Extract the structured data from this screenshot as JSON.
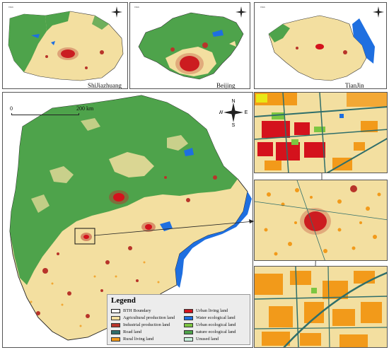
{
  "colors": {
    "agricultural": "#f3dfa0",
    "industrial": "#b8342a",
    "road": "#2f6e6a",
    "rural": "#f29a1a",
    "urban": "#d4121c",
    "water": "#1e6fe0",
    "urban_ecological": "#7cc641",
    "nature_ecological": "#4ea34b",
    "unused": "#c8f0dc",
    "boundary": "#222222"
  },
  "top_maps": [
    {
      "label": "ShiJiazhuang",
      "scale": "0 Km"
    },
    {
      "label": "Beijing",
      "scale": "0 Km"
    },
    {
      "label": "TianJin",
      "scale": "0 Km"
    }
  ],
  "main_map": {
    "scale_start": "0",
    "scale_end": "200 km",
    "compass": {
      "n": "N",
      "s": "S",
      "e": "E",
      "w": "W"
    }
  },
  "legend": {
    "title": "Legend",
    "items": [
      {
        "label": "BTH Boundary",
        "color_key": "boundary_box"
      },
      {
        "label": "Agricultural production land",
        "color_key": "agricultural"
      },
      {
        "label": "Industrial production land",
        "color_key": "industrial"
      },
      {
        "label": "Road land",
        "color_key": "road"
      },
      {
        "label": "Rural living land",
        "color_key": "rural"
      },
      {
        "label": "Urban living land",
        "color_key": "urban"
      },
      {
        "label": "Water ecological land",
        "color_key": "water"
      },
      {
        "label": "Urban ecological land",
        "color_key": "urban_ecological"
      },
      {
        "label": "nature ecological land",
        "color_key": "nature_ecological"
      },
      {
        "label": "Unused land",
        "color_key": "unused"
      }
    ]
  }
}
